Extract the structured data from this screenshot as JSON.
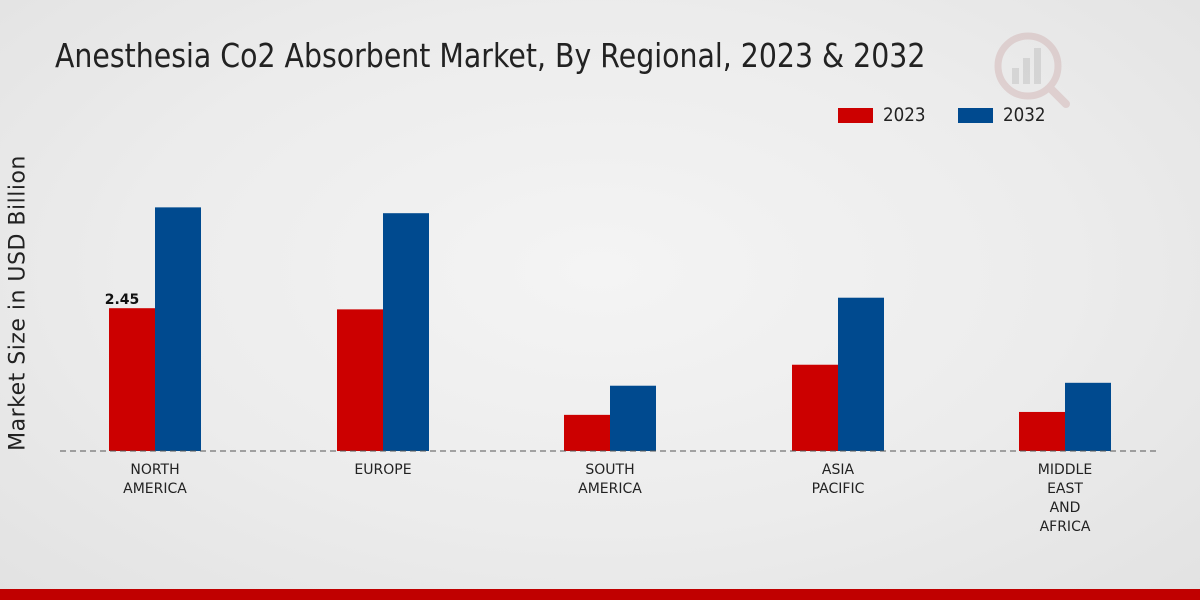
{
  "chart_data": {
    "type": "bar",
    "title": "Anesthesia Co2 Absorbent Market, By Regional, 2023 & 2032",
    "ylabel": "Market Size in USD Billion",
    "xlabel": "",
    "categories": [
      [
        "NORTH",
        "AMERICA"
      ],
      [
        "EUROPE"
      ],
      [
        "SOUTH",
        "AMERICA"
      ],
      [
        "ASIA",
        "PACIFIC"
      ],
      [
        "MIDDLE",
        "EAST",
        "AND",
        "AFRICA"
      ]
    ],
    "series": [
      {
        "name": "2023",
        "color": "#cc0000",
        "values": [
          2.45,
          2.43,
          0.62,
          1.48,
          0.67
        ]
      },
      {
        "name": "2032",
        "color": "#004a8f",
        "values": [
          4.18,
          4.08,
          1.12,
          2.63,
          1.17
        ]
      }
    ],
    "data_labels": [
      {
        "series": 0,
        "index": 0,
        "text": "2.45"
      }
    ],
    "ylim": [
      0,
      7
    ],
    "grid": false,
    "legend": "top-right"
  }
}
